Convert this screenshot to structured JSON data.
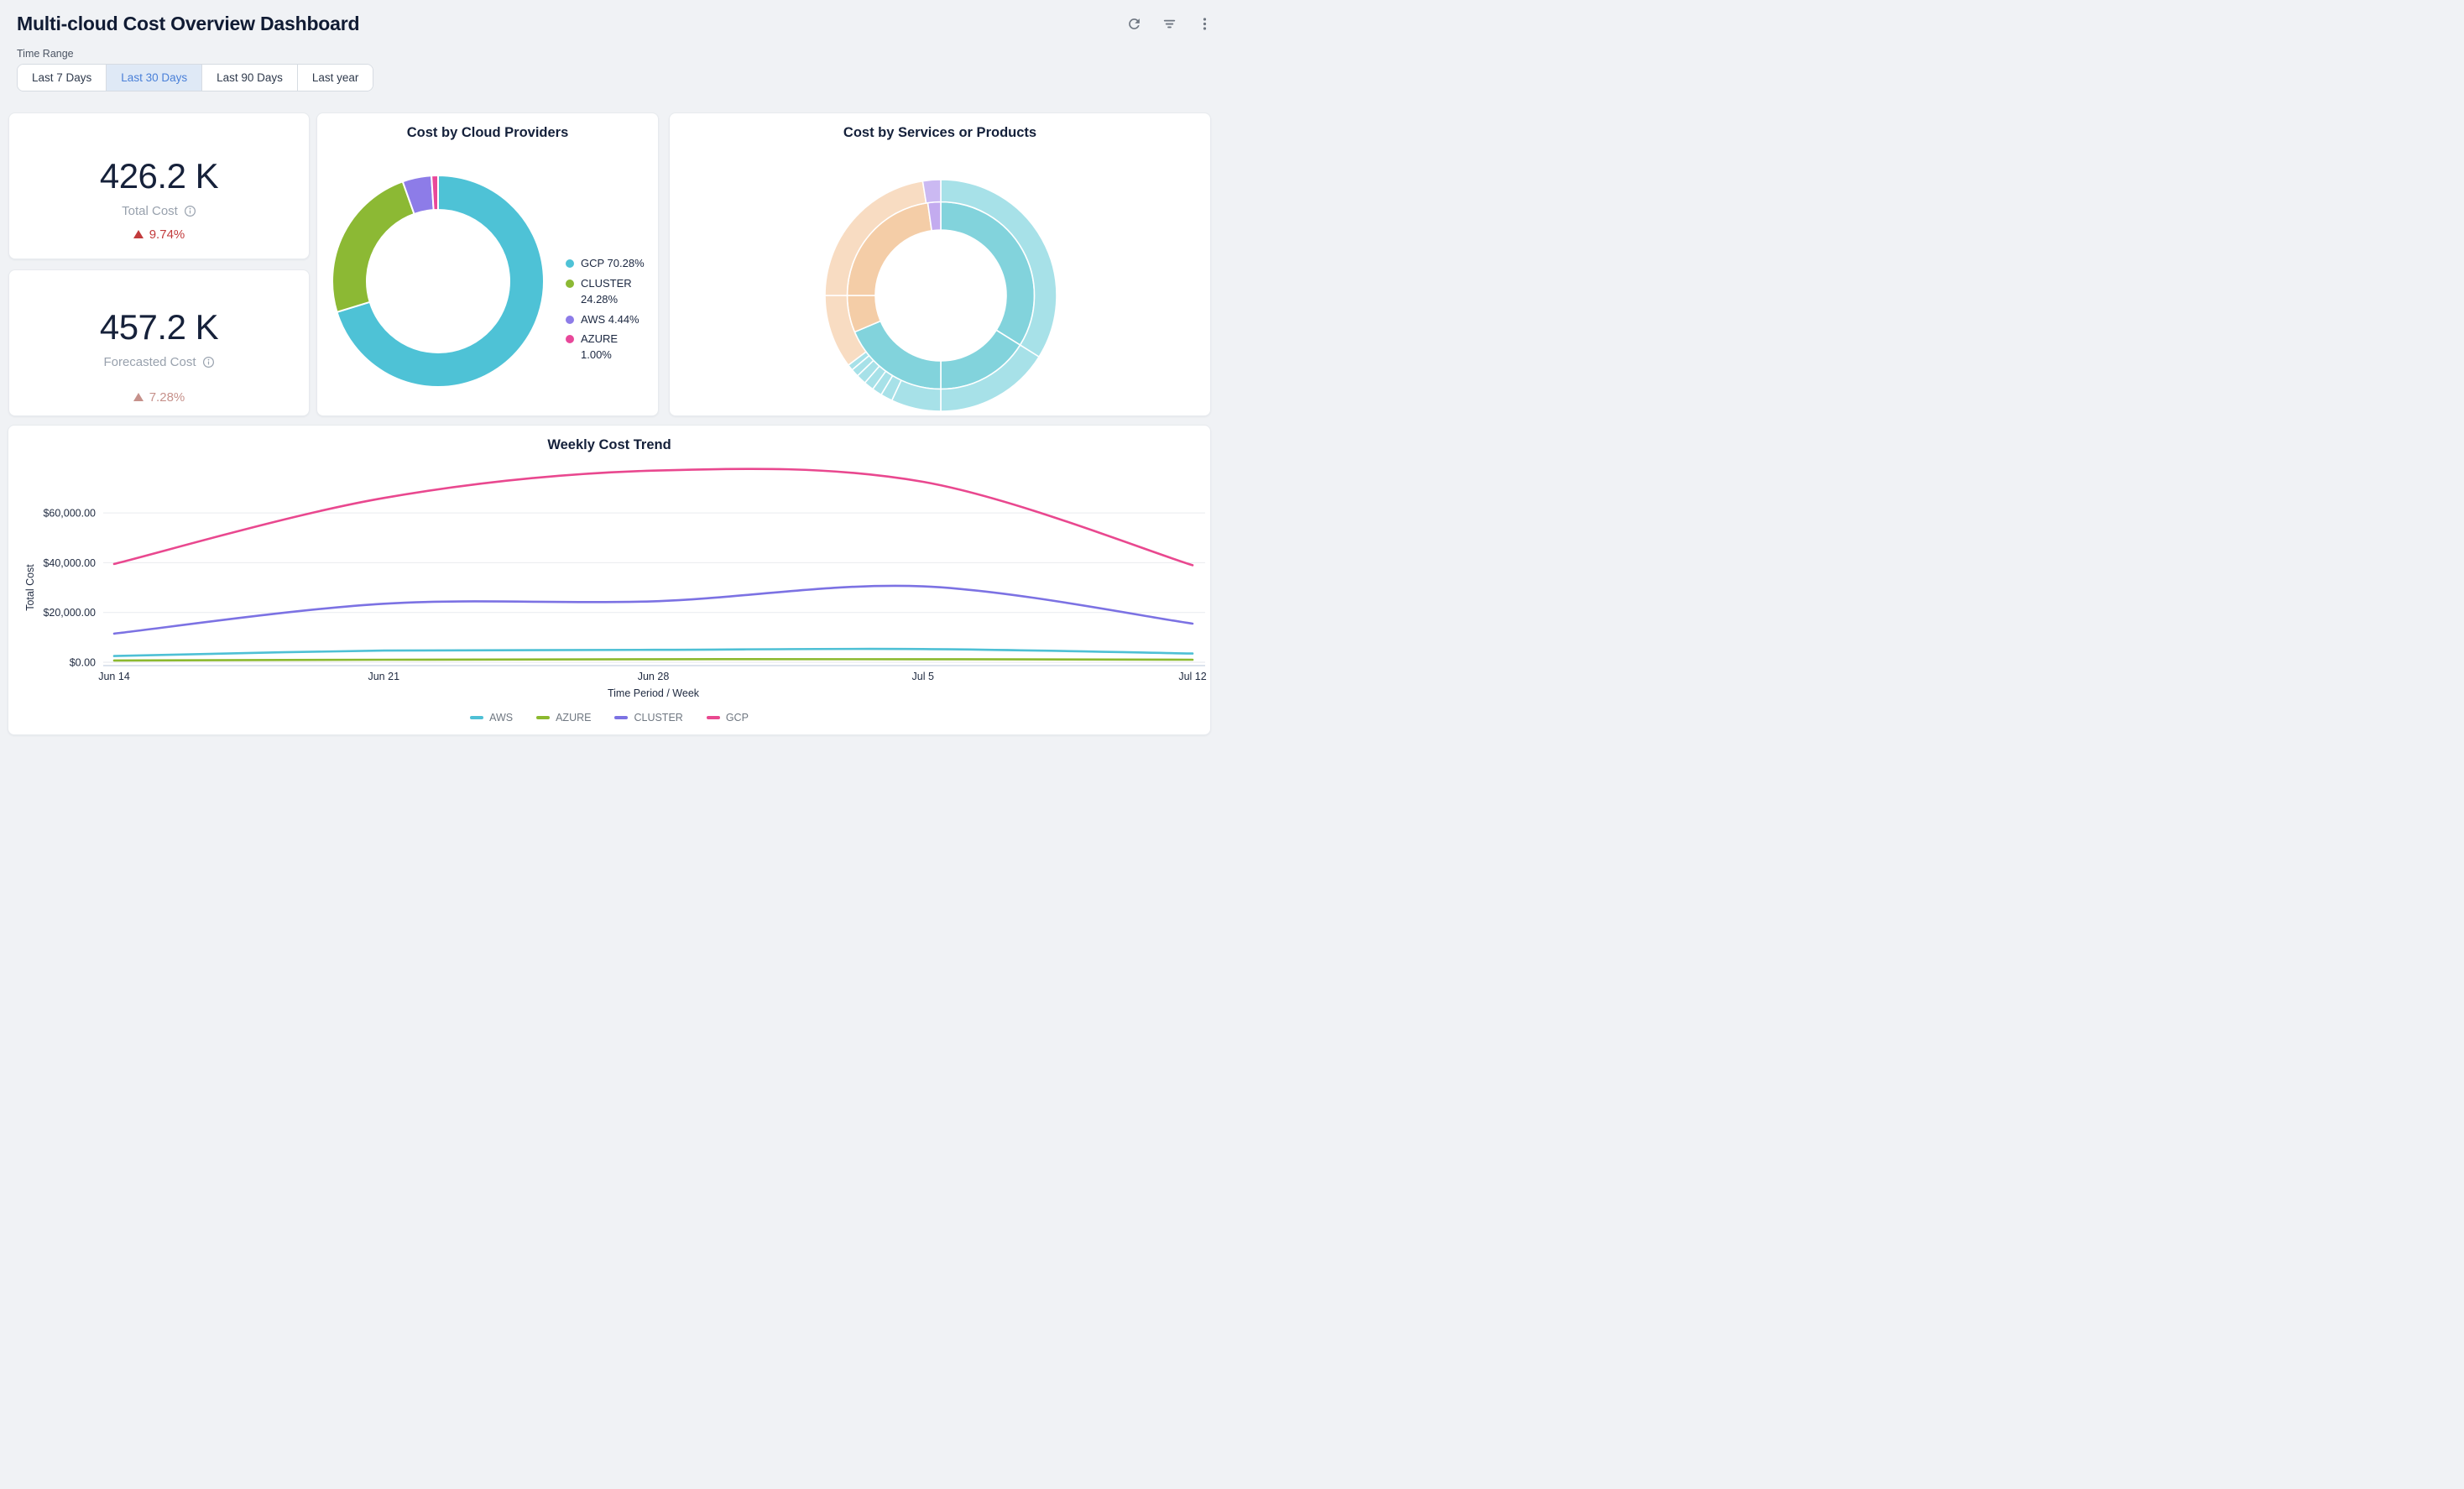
{
  "header": {
    "title": "Multi-cloud Cost Overview Dashboard",
    "actions": [
      {
        "name": "refresh"
      },
      {
        "name": "filter"
      },
      {
        "name": "more-options"
      }
    ]
  },
  "time_range": {
    "label": "Time Range",
    "options": [
      {
        "label": "Last 7 Days",
        "selected": false
      },
      {
        "label": "Last 30 Days",
        "selected": true
      },
      {
        "label": "Last 90 Days",
        "selected": false
      },
      {
        "label": "Last year",
        "selected": false
      }
    ]
  },
  "stat_cards": [
    {
      "value": "426.2 K",
      "label": "Total Cost",
      "delta": "9.74%",
      "delta_direction": "up",
      "delta_color": "#c23b3c"
    },
    {
      "value": "457.2 K",
      "label": "Forecasted Cost",
      "delta": "7.28%",
      "delta_direction": "up",
      "delta_color": "#c6918b"
    }
  ],
  "chart_data": [
    {
      "id": "cost-by-cloud-providers",
      "type": "pie",
      "donut": true,
      "title": "Cost by Cloud Providers",
      "labels": [
        "GCP",
        "CLUSTER",
        "AWS",
        "AZURE"
      ],
      "values": [
        70.28,
        24.28,
        4.44,
        1.0
      ],
      "unit": "%",
      "colors": [
        "#4ec2d6",
        "#8cb934",
        "#8d7ce8",
        "#e8489a"
      ],
      "legend": [
        "GCP 70.28%",
        "CLUSTER 24.28%",
        "AWS 4.44%",
        "AZURE 1.00%"
      ],
      "legend_position": "right",
      "start_angle_deg": 0,
      "direction": "clockwise"
    },
    {
      "id": "cost-by-services-or-products",
      "type": "sunburst",
      "title": "Cost by Services or Products",
      "colors": {
        "inner_teal": "#82d3dc",
        "outer_teal": "#a7e1e8",
        "inner_peach": "#f4cda7",
        "outer_peach": "#f8dcc2",
        "inner_purple": "#c3abef",
        "outer_purple": "#cbb9f2"
      },
      "rings": {
        "inner": [
          {
            "start_deg": 0,
            "end_deg": 122,
            "color": "inner_teal"
          },
          {
            "start_deg": 122,
            "end_deg": 180,
            "color": "inner_teal"
          },
          {
            "start_deg": 180,
            "end_deg": 247,
            "color": "inner_teal"
          },
          {
            "start_deg": 247,
            "end_deg": 270,
            "color": "inner_peach"
          },
          {
            "start_deg": 270,
            "end_deg": 352,
            "color": "inner_peach"
          },
          {
            "start_deg": 352,
            "end_deg": 360,
            "color": "inner_purple"
          }
        ],
        "outer": [
          {
            "start_deg": 0,
            "end_deg": 122,
            "color": "outer_teal"
          },
          {
            "start_deg": 122,
            "end_deg": 180,
            "color": "outer_teal"
          },
          {
            "start_deg": 180,
            "end_deg": 205,
            "color": "outer_teal"
          },
          {
            "start_deg": 205,
            "end_deg": 211,
            "color": "outer_teal"
          },
          {
            "start_deg": 211,
            "end_deg": 216,
            "color": "outer_teal"
          },
          {
            "start_deg": 216,
            "end_deg": 221,
            "color": "outer_teal"
          },
          {
            "start_deg": 221,
            "end_deg": 226,
            "color": "outer_teal"
          },
          {
            "start_deg": 226,
            "end_deg": 230,
            "color": "outer_teal"
          },
          {
            "start_deg": 230,
            "end_deg": 233,
            "color": "outer_teal"
          },
          {
            "start_deg": 233,
            "end_deg": 270,
            "color": "outer_peach"
          },
          {
            "start_deg": 270,
            "end_deg": 351,
            "color": "outer_peach"
          },
          {
            "start_deg": 351,
            "end_deg": 360,
            "color": "outer_purple"
          }
        ]
      }
    },
    {
      "id": "weekly-cost-trend",
      "type": "line",
      "title": "Weekly Cost Trend",
      "xlabel": "Time Period / Week",
      "ylabel": "Total Cost",
      "categories": [
        "Jun 14",
        "Jun 21",
        "Jun 28",
        "Jul 5",
        "Jul 12"
      ],
      "series": [
        {
          "name": "AWS",
          "color": "#4ec0d5",
          "values": [
            2500,
            4700,
            5000,
            5300,
            3500
          ]
        },
        {
          "name": "AZURE",
          "color": "#8cb92f",
          "values": [
            700,
            1000,
            1200,
            1200,
            1000
          ]
        },
        {
          "name": "CLUSTER",
          "color": "#7c72e3",
          "values": [
            11500,
            23500,
            24500,
            30500,
            15500
          ]
        },
        {
          "name": "GCP",
          "color": "#e9488f",
          "values": [
            39500,
            66000,
            77000,
            72500,
            39000
          ]
        }
      ],
      "yticks": [
        {
          "value": 0,
          "label": "$0.00"
        },
        {
          "value": 20000,
          "label": "$20,000.00"
        },
        {
          "value": 40000,
          "label": "$40,000.00"
        },
        {
          "value": 60000,
          "label": "$60,000.00"
        }
      ],
      "ylim": [
        0,
        81000
      ],
      "grid": "horizontal",
      "legend_position": "bottom"
    }
  ]
}
